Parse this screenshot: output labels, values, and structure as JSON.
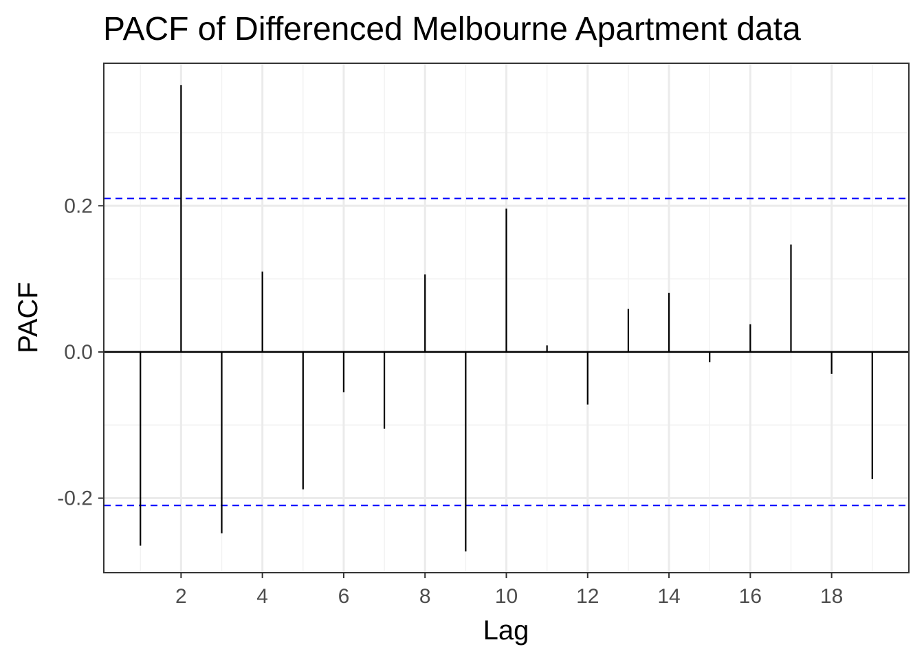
{
  "chart_data": {
    "type": "bar",
    "title": "PACF of Differenced Melbourne Apartment data",
    "xlabel": "Lag",
    "ylabel": "PACF",
    "x": [
      1,
      2,
      3,
      4,
      5,
      6,
      7,
      8,
      9,
      10,
      11,
      12,
      13,
      14,
      15,
      16,
      17,
      18,
      19
    ],
    "values": [
      -0.265,
      0.365,
      -0.248,
      0.11,
      -0.188,
      -0.055,
      -0.105,
      0.106,
      -0.273,
      0.196,
      0.009,
      -0.072,
      0.059,
      0.081,
      -0.014,
      0.038,
      0.147,
      -0.03,
      -0.174
    ],
    "xlim": [
      0.1,
      19.9
    ],
    "ylim": [
      -0.302,
      0.395
    ],
    "xticks": [
      2,
      4,
      6,
      8,
      10,
      12,
      14,
      16,
      18
    ],
    "xtick_labels": [
      "2",
      "4",
      "6",
      "8",
      "10",
      "12",
      "14",
      "16",
      "18"
    ],
    "yticks": [
      -0.2,
      0.0,
      0.2
    ],
    "ytick_labels": [
      "-0.2",
      "0.0",
      "0.2"
    ],
    "confidence_bounds": [
      -0.21,
      0.21
    ],
    "grid": true,
    "legend": "none",
    "colors": {
      "bars": "#000000",
      "zero_line": "#000000",
      "bounds": "#0000ff",
      "grid_major": "#ebebeb",
      "grid_minor": "#f2f2f2",
      "panel_border": "#333333"
    }
  }
}
